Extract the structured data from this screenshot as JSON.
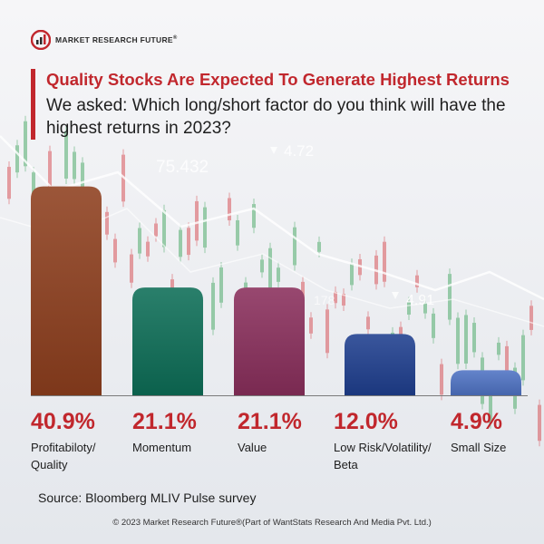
{
  "logo": {
    "text": "MARKET RESEARCH FUTURE",
    "reg": "®"
  },
  "header": {
    "title": "Quality Stocks Are Expected To Generate Highest Returns",
    "subtitle": "We asked: Which long/short factor do you think will have the highest returns in 2023?"
  },
  "chart_data": {
    "type": "bar",
    "categories": [
      "Profitabiloty/ Quality",
      "Momentum",
      "Value",
      "Low Risk/Volatility/ Beta",
      "Small Size"
    ],
    "values": [
      40.9,
      21.1,
      21.1,
      12.0,
      4.9
    ],
    "value_labels": [
      "40.9%",
      "21.1%",
      "21.1%",
      "12.0%",
      "4.9%"
    ],
    "ylim": [
      0,
      41
    ],
    "colors": [
      "#8e3f1e",
      "#0d6e57",
      "#8a2f5c",
      "#1f3f8f",
      "#4f73c4"
    ],
    "grid": false,
    "legend": "none"
  },
  "source": "Source: Bloomberg MLIV Pulse survey",
  "footer": "© 2023 Market Research Future®(Part of WantStats Research And Media Pvt. Ltd.)",
  "background_numbers": [
    "75.432",
    "4.72",
    "4.91",
    "178"
  ]
}
